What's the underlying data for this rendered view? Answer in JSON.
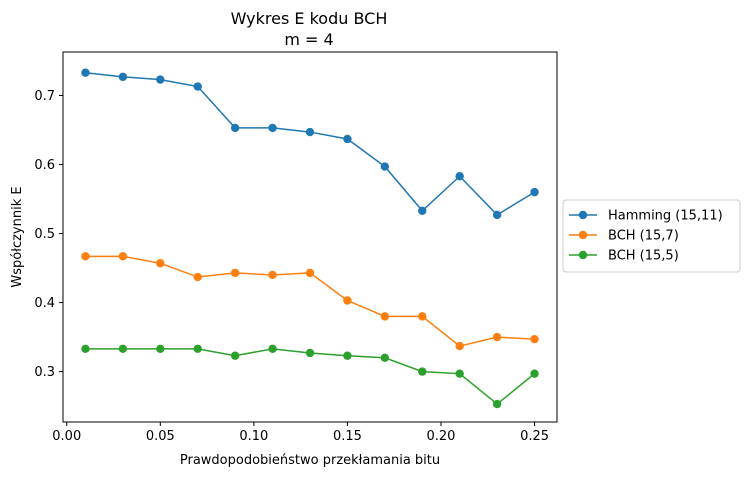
{
  "chart_data": {
    "type": "line",
    "title": "Wykres E kodu BCH",
    "subtitle": "m = 4",
    "xlabel": "Prawdopodobieństwo przekłamania bitu",
    "ylabel": "Współczynnik E",
    "xlim": [
      -0.002,
      0.262
    ],
    "ylim": [
      0.227,
      0.763
    ],
    "xticks": [
      0.0,
      0.05,
      0.1,
      0.15,
      0.2,
      0.25
    ],
    "xtick_labels": [
      "0.00",
      "0.05",
      "0.10",
      "0.15",
      "0.20",
      "0.25"
    ],
    "yticks": [
      0.3,
      0.4,
      0.5,
      0.6,
      0.7
    ],
    "ytick_labels": [
      "0.3",
      "0.4",
      "0.5",
      "0.6",
      "0.7"
    ],
    "grid": false,
    "legend_position": "outside-right",
    "x": [
      0.01,
      0.03,
      0.05,
      0.07,
      0.09,
      0.11,
      0.13,
      0.15,
      0.17,
      0.19,
      0.21,
      0.23,
      0.25
    ],
    "series": [
      {
        "name": "Hamming (15,11)",
        "color": "#1f77b4",
        "values": [
          0.733,
          0.727,
          0.723,
          0.713,
          0.653,
          0.653,
          0.647,
          0.637,
          0.597,
          0.533,
          0.583,
          0.527,
          0.56
        ]
      },
      {
        "name": "BCH (15,7)",
        "color": "#ff7f0e",
        "values": [
          0.467,
          0.467,
          0.457,
          0.437,
          0.443,
          0.44,
          0.443,
          0.403,
          0.38,
          0.38,
          0.337,
          0.35,
          0.347
        ]
      },
      {
        "name": "BCH (15,5)",
        "color": "#2ca02c",
        "values": [
          0.333,
          0.333,
          0.333,
          0.333,
          0.323,
          0.333,
          0.327,
          0.323,
          0.32,
          0.3,
          0.297,
          0.253,
          0.297
        ]
      }
    ]
  }
}
